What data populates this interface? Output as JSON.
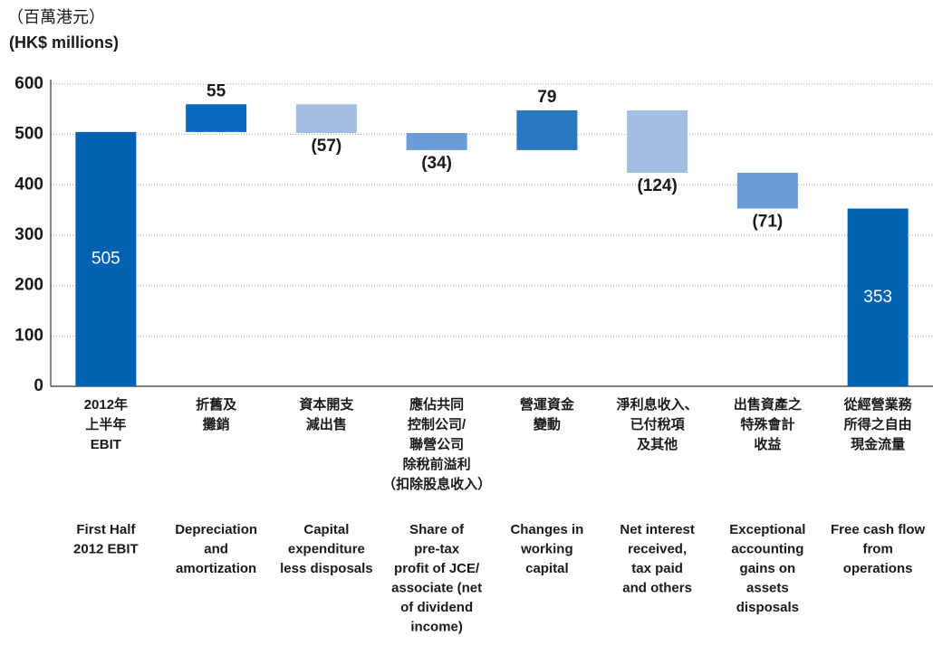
{
  "chart_data": {
    "type": "waterfall",
    "y_label": [
      "（百萬港元）",
      "(HK$ millions)"
    ],
    "categories_zh": [
      [
        "2012年",
        "上半年",
        "EBIT"
      ],
      [
        "折舊及",
        "攤銷"
      ],
      [
        "資本開支",
        "減出售"
      ],
      [
        "應佔共同",
        "控制公司/",
        "聯營公司",
        "除稅前溢利",
        "（扣除股息收入）"
      ],
      [
        "營運資金",
        "變動"
      ],
      [
        "淨利息收入、",
        "已付稅項",
        "及其他"
      ],
      [
        "出售資產之",
        "特殊會計",
        "收益"
      ],
      [
        "從經營業務",
        "所得之自由",
        "現金流量"
      ]
    ],
    "categories_en": [
      [
        "First Half",
        "2012 EBIT"
      ],
      [
        "Depreciation",
        "and",
        "amortization"
      ],
      [
        "Capital",
        "expenditure",
        "less disposals"
      ],
      [
        "Share of",
        "pre-tax",
        "profit of JCE/",
        "associate (net",
        "of dividend",
        "income)"
      ],
      [
        "Changes in",
        "working",
        "capital"
      ],
      [
        "Net interest",
        "received,",
        "tax paid",
        "and others"
      ],
      [
        "Exceptional",
        "accounting",
        "gains on",
        "assets",
        "disposals"
      ],
      [
        "Free cash flow",
        "from",
        "operations"
      ]
    ],
    "values": [
      505,
      55,
      -57,
      -34,
      79,
      -124,
      -71,
      353
    ],
    "value_labels": [
      "505",
      "55",
      "(57)",
      "(34)",
      "79",
      "(124)",
      "(71)",
      "353"
    ],
    "is_total": [
      true,
      false,
      false,
      false,
      false,
      false,
      false,
      true
    ],
    "colors": [
      "#0062b1",
      "#0a68bd",
      "#a4bee3",
      "#6b9cd5",
      "#2b78c2",
      "#a4bee3",
      "#6b9cd5",
      "#0062b1"
    ],
    "ylim": [
      0,
      600
    ],
    "yticks": [
      0,
      100,
      200,
      300,
      400,
      500,
      600
    ],
    "grid": true
  }
}
